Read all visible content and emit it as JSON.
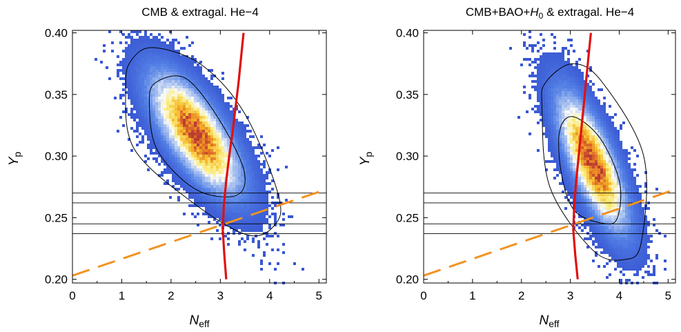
{
  "chart_data": [
    {
      "type": "heatmap",
      "title": "CMB & extragal. He−4",
      "xlabel": "N_eff",
      "ylabel": "Y_p",
      "xlim": [
        0,
        5.15
      ],
      "ylim": [
        0.197,
        0.402
      ],
      "x_ticks": [
        "0",
        "1",
        "2",
        "3",
        "4",
        "5"
      ],
      "y_ticks": [
        "0.20",
        "0.25",
        "0.30",
        "0.35",
        "0.40"
      ],
      "posterior": {
        "center": [
          2.5,
          0.318
        ],
        "sd_neff": 0.58,
        "sd_yp": 0.031,
        "correlation": -0.72
      },
      "contours": [
        {
          "level": "68%",
          "center": [
            2.5,
            0.318
          ],
          "points": [
            [
              2.3,
              0.363
            ],
            [
              2.97,
              0.33
            ],
            [
              3.48,
              0.288
            ],
            [
              3.32,
              0.268
            ],
            [
              2.5,
              0.273
            ],
            [
              1.72,
              0.305
            ],
            [
              1.56,
              0.344
            ],
            [
              1.7,
              0.36
            ]
          ]
        },
        {
          "level": "95%",
          "center": [
            2.45,
            0.318
          ],
          "points": [
            [
              1.65,
              0.388
            ],
            [
              2.62,
              0.374
            ],
            [
              3.5,
              0.334
            ],
            [
              4.18,
              0.268
            ],
            [
              4.1,
              0.244
            ],
            [
              3.55,
              0.236
            ],
            [
              2.45,
              0.262
            ],
            [
              1.25,
              0.306
            ],
            [
              1.08,
              0.357
            ],
            [
              1.2,
              0.378
            ]
          ]
        }
      ],
      "red_curve": [
        [
          3.12,
          0.2
        ],
        [
          3.08,
          0.22
        ],
        [
          3.05,
          0.24
        ],
        [
          3.07,
          0.26
        ],
        [
          3.12,
          0.28
        ],
        [
          3.18,
          0.3
        ],
        [
          3.25,
          0.32
        ],
        [
          3.31,
          0.34
        ],
        [
          3.37,
          0.36
        ],
        [
          3.42,
          0.38
        ],
        [
          3.47,
          0.4
        ]
      ],
      "orange_dashed": [
        [
          0,
          0.203
        ],
        [
          5.15,
          0.273
        ]
      ],
      "horizontal_lines": [
        0.237,
        0.245,
        0.262,
        0.27
      ]
    },
    {
      "type": "heatmap",
      "title": "CMB+BAO+",
      "title_italic": "H",
      "title_sub": "0",
      "title_tail": " & extragal. He−4",
      "xlabel": "N_eff",
      "ylabel": "Y_p",
      "xlim": [
        0,
        5.15
      ],
      "ylim": [
        0.197,
        0.402
      ],
      "x_ticks": [
        "0",
        "1",
        "2",
        "3",
        "4",
        "5"
      ],
      "y_ticks": [
        "0.20",
        "0.25",
        "0.30",
        "0.35",
        "0.40"
      ],
      "posterior": {
        "center": [
          3.45,
          0.295
        ],
        "sd_neff": 0.45,
        "sd_yp": 0.035,
        "correlation": -0.75
      },
      "contours": [
        {
          "level": "68%",
          "center": [
            3.45,
            0.295
          ],
          "points": [
            [
              3.05,
              0.332
            ],
            [
              3.6,
              0.315
            ],
            [
              4.0,
              0.28
            ],
            [
              3.98,
              0.252
            ],
            [
              3.75,
              0.245
            ],
            [
              3.1,
              0.255
            ],
            [
              2.82,
              0.285
            ],
            [
              2.78,
              0.32
            ]
          ]
        },
        {
          "level": "95%",
          "center": [
            3.55,
            0.29
          ],
          "points": [
            [
              3.05,
              0.375
            ],
            [
              3.65,
              0.36
            ],
            [
              4.5,
              0.3
            ],
            [
              4.45,
              0.23
            ],
            [
              4.1,
              0.216
            ],
            [
              3.45,
              0.224
            ],
            [
              2.58,
              0.275
            ],
            [
              2.42,
              0.34
            ],
            [
              2.5,
              0.36
            ]
          ]
        }
      ],
      "red_curve": [
        [
          3.15,
          0.2
        ],
        [
          3.1,
          0.22
        ],
        [
          3.06,
          0.24
        ],
        [
          3.08,
          0.26
        ],
        [
          3.12,
          0.28
        ],
        [
          3.17,
          0.3
        ],
        [
          3.22,
          0.32
        ],
        [
          3.27,
          0.34
        ],
        [
          3.32,
          0.36
        ],
        [
          3.37,
          0.38
        ],
        [
          3.42,
          0.4
        ]
      ],
      "orange_dashed": [
        [
          0,
          0.203
        ],
        [
          5.15,
          0.273
        ]
      ],
      "horizontal_lines": [
        0.237,
        0.245,
        0.262,
        0.27
      ]
    }
  ]
}
